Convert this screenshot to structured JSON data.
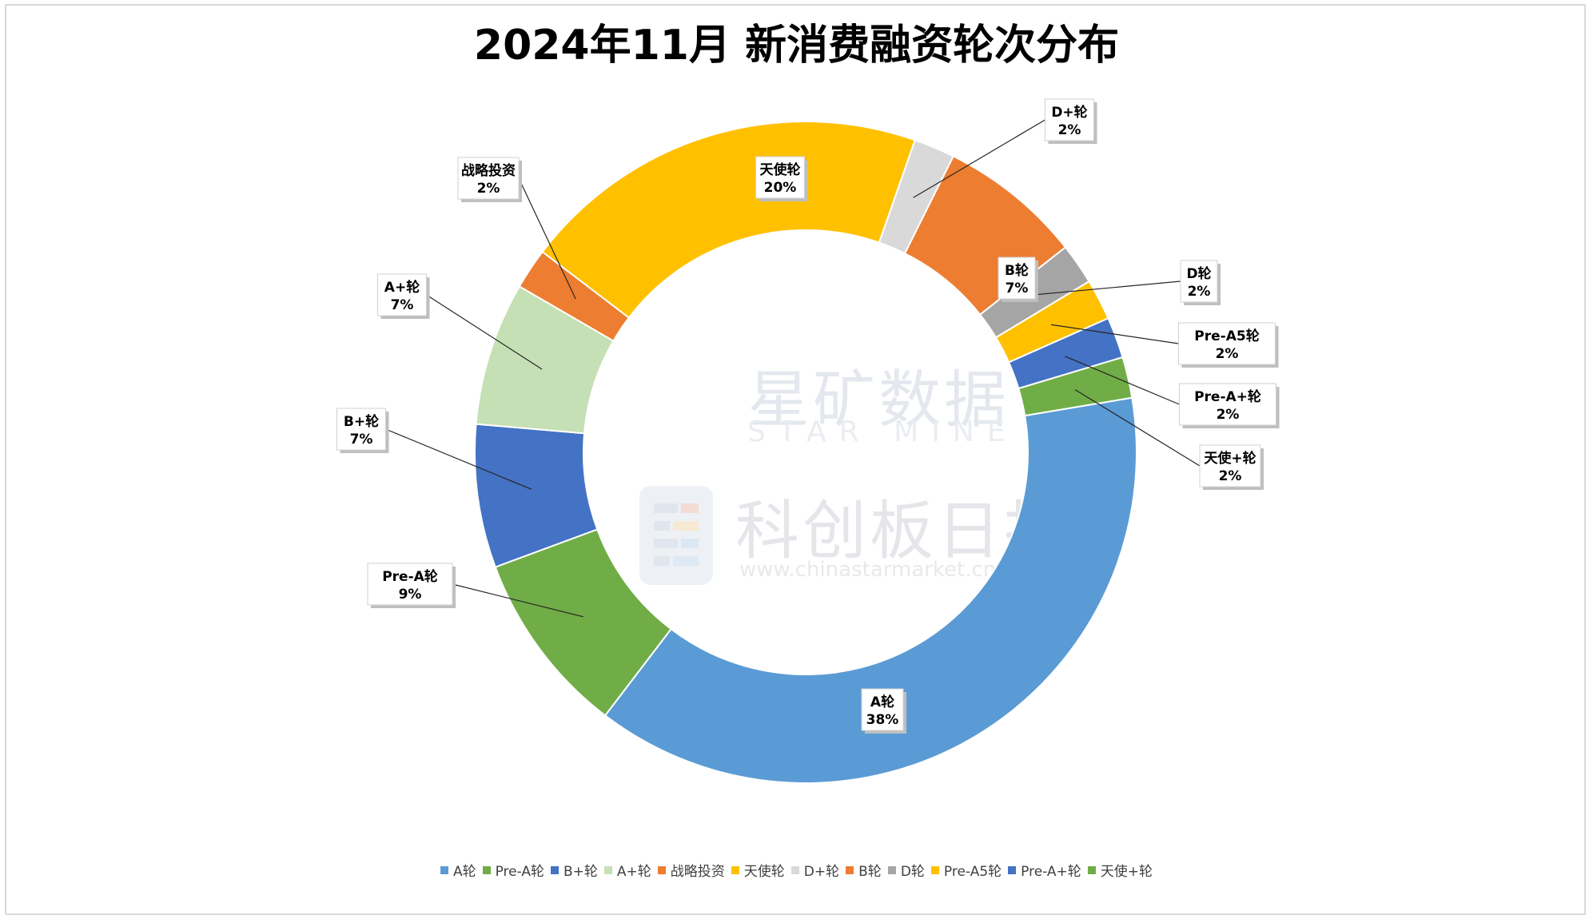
{
  "title": "2024年11月 新消费融资轮次分布",
  "watermarks": {
    "brand_cn": "星矿数据",
    "brand_en": "STAR MINE",
    "brand2_cn": "科创板日报",
    "brand2_url": "www.chinastarmarket.cn"
  },
  "chart_data": {
    "type": "pie",
    "variant": "doughnut",
    "title": "2024年11月 新消费融资轮次分布",
    "legend_position": "bottom",
    "slices": [
      {
        "name": "A轮",
        "label": "A轮",
        "value": 38,
        "display": "38%",
        "color": "#5B9BD5"
      },
      {
        "name": "Pre-A轮",
        "label": "Pre-A轮",
        "value": 9,
        "display": "9%",
        "color": "#70AD47"
      },
      {
        "name": "B+轮",
        "label": "B+轮",
        "value": 7,
        "display": "7%",
        "color": "#4472C4"
      },
      {
        "name": "A+轮",
        "label": "A+轮",
        "value": 7,
        "display": "7%",
        "color": "#C5E0B4"
      },
      {
        "name": "战略投资",
        "label": "战略投资",
        "value": 2,
        "display": "2%",
        "color": "#ED7D31"
      },
      {
        "name": "天使轮",
        "label": "天使轮",
        "value": 20,
        "display": "20%",
        "color": "#FFC000"
      },
      {
        "name": "D+轮",
        "label": "D+轮",
        "value": 2,
        "display": "2%",
        "color": "#D9D9D9"
      },
      {
        "name": "B轮",
        "label": "B轮",
        "value": 7,
        "display": "7%",
        "color": "#ED7D31"
      },
      {
        "name": "D轮",
        "label": "D轮",
        "value": 2,
        "display": "2%",
        "color": "#A5A5A5"
      },
      {
        "name": "Pre-A5轮",
        "label": "Pre-A5轮",
        "value": 2,
        "display": "2%",
        "color": "#FFC000"
      },
      {
        "name": "Pre-A+轮",
        "label": "Pre-A+轮",
        "value": 2,
        "display": "2%",
        "color": "#4472C4"
      },
      {
        "name": "天使+轮",
        "label": "天使+轮",
        "value": 2,
        "display": "2%",
        "color": "#70AD47"
      }
    ]
  }
}
